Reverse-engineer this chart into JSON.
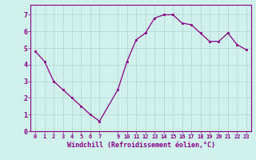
{
  "x": [
    0,
    1,
    2,
    3,
    4,
    5,
    6,
    7,
    9,
    10,
    11,
    12,
    13,
    14,
    15,
    16,
    17,
    18,
    19,
    20,
    21,
    22,
    23
  ],
  "y": [
    4.8,
    4.2,
    3.0,
    2.5,
    2.0,
    1.5,
    1.0,
    0.6,
    2.5,
    4.2,
    5.5,
    5.9,
    6.8,
    7.0,
    7.0,
    6.5,
    6.4,
    5.9,
    5.4,
    5.4,
    5.9,
    5.2,
    4.9
  ],
  "line_color": "#880088",
  "marker": "s",
  "markersize": 2.0,
  "bg_color": "#d0f0ec",
  "grid_color": "#b0d4d0",
  "tick_color": "#880088",
  "label_color": "#880088",
  "spine_color": "#880088",
  "xlabel": "Windchill (Refroidissement éolien,°C)",
  "xlim": [
    -0.5,
    23.5
  ],
  "ylim": [
    0,
    7.6
  ],
  "yticks": [
    0,
    1,
    2,
    3,
    4,
    5,
    6,
    7
  ],
  "xticks": [
    0,
    1,
    2,
    3,
    4,
    5,
    6,
    7,
    9,
    10,
    11,
    12,
    13,
    14,
    15,
    16,
    17,
    18,
    19,
    20,
    21,
    22,
    23
  ]
}
